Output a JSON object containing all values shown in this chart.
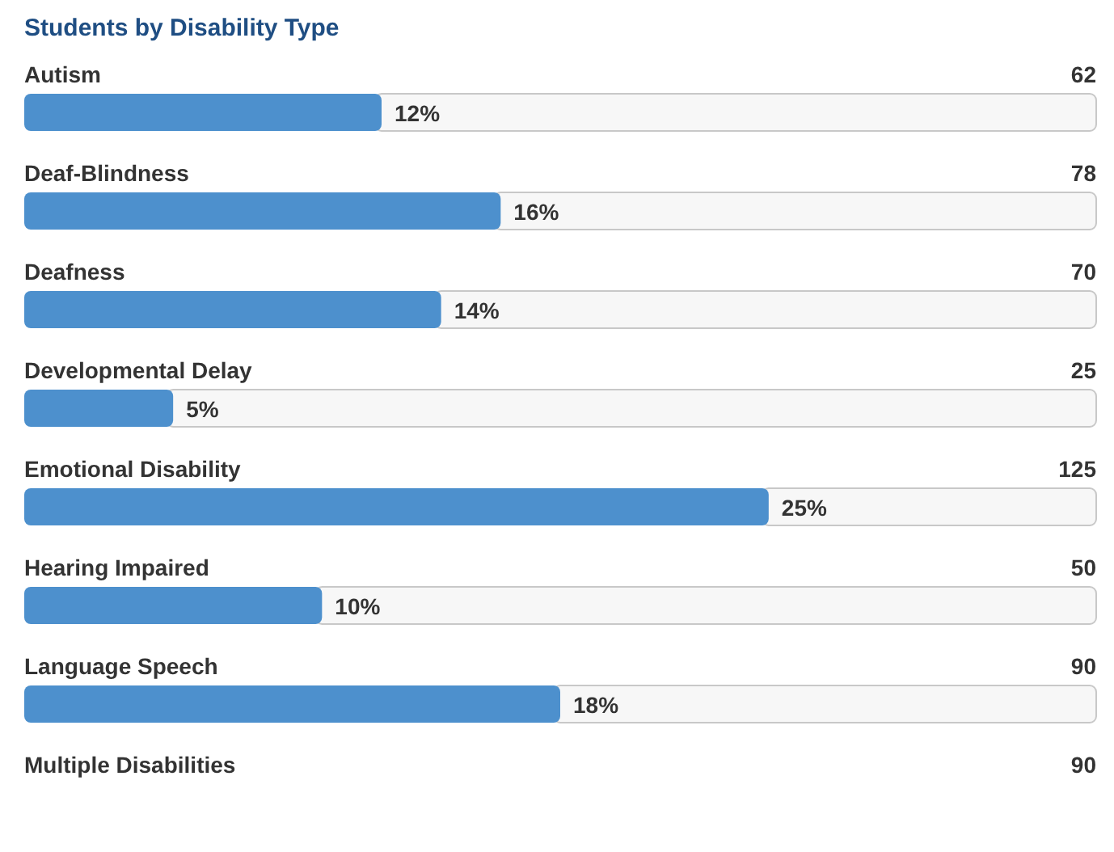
{
  "chart_data": {
    "type": "bar",
    "orientation": "horizontal",
    "title": "Students by Disability Type",
    "categories": [
      "Autism",
      "Deaf-Blindness",
      "Deafness",
      "Developmental Delay",
      "Emotional Disability",
      "Hearing Impaired",
      "Language Speech",
      "Multiple Disabilities"
    ],
    "xlim": [
      0,
      36
    ],
    "series": [
      {
        "color": "#4d90cd",
        "values": [
          12,
          16,
          14,
          5,
          25,
          10,
          18,
          null
        ],
        "value_labels": [
          "12%",
          "16%",
          "14%",
          "5%",
          "25%",
          "10%",
          "18%",
          null
        ]
      }
    ],
    "annotations": [
      "62",
      "78",
      "70",
      "25",
      "125",
      "50",
      "90",
      "90"
    ]
  }
}
